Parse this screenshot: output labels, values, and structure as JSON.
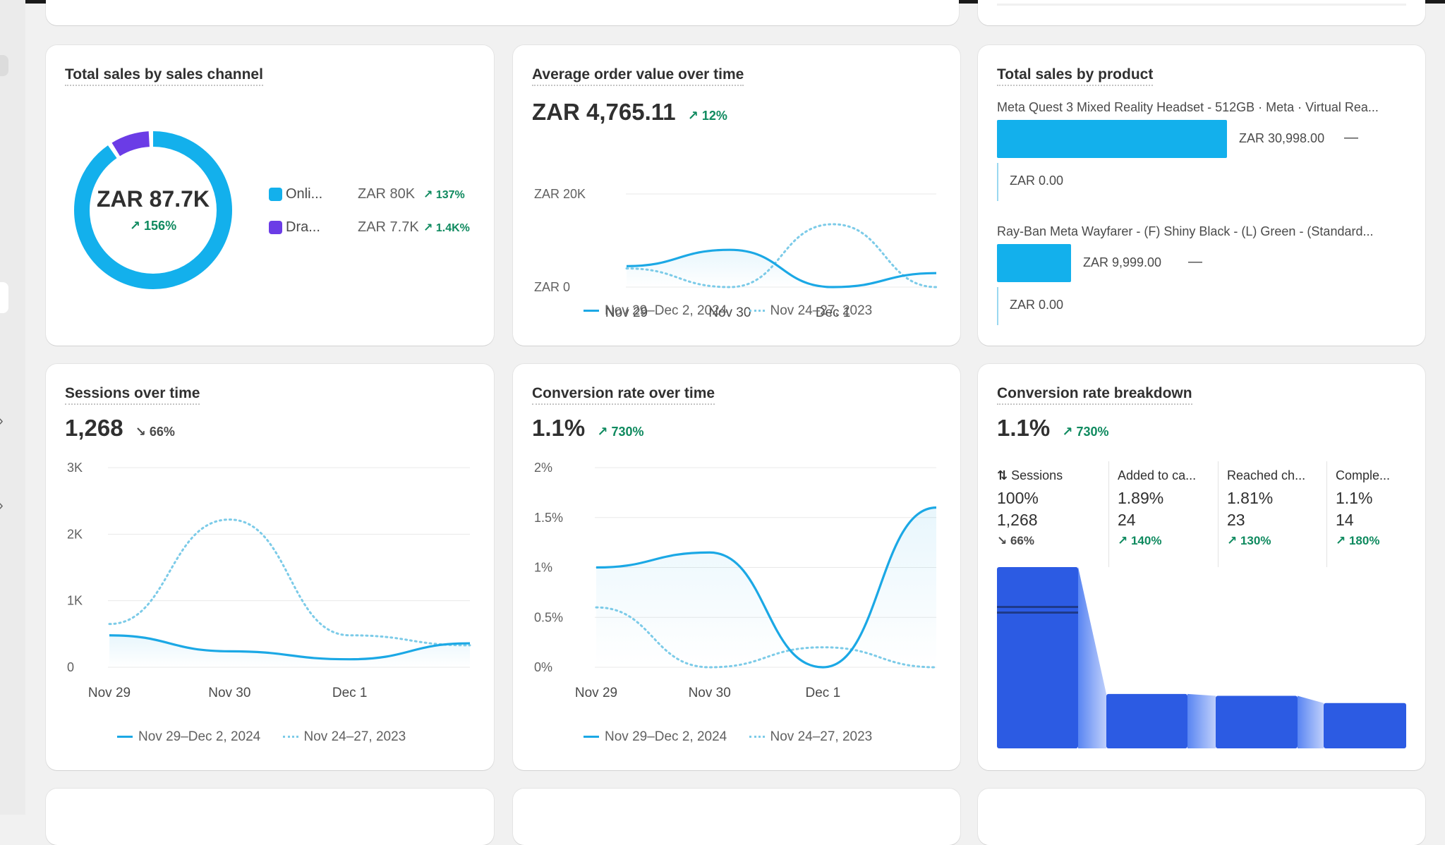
{
  "colors": {
    "primary_line": "#1ba8e5",
    "comparison_line": "#7ccbe8",
    "online_store": "#13b0ec",
    "draft_orders": "#6b3ce6",
    "positive": "#0f8a5f",
    "funnel_bar": "#2c5be3"
  },
  "sales_by_channel": {
    "title": "Total sales by sales channel",
    "center_value": "ZAR 87.7K",
    "center_delta": "156%",
    "legend": [
      {
        "label": "Onli...",
        "value": "ZAR 80K",
        "delta": "137%",
        "color": "#13b0ec"
      },
      {
        "label": "Dra...",
        "value": "ZAR 7.7K",
        "delta": "1.4K%",
        "color": "#6b3ce6"
      }
    ]
  },
  "aov": {
    "title": "Average order value over time",
    "value": "ZAR 4,765.11",
    "delta": "12%",
    "legend_current": "Nov 29–Dec 2, 2024",
    "legend_previous": "Nov 24–27, 2023"
  },
  "sales_by_product": {
    "title": "Total sales by product",
    "products": [
      {
        "name": "Meta Quest 3 Mixed Reality Headset - 512GB · Meta · Virtual Rea...",
        "value": "ZAR 30,998.00",
        "previous": "ZAR 0.00",
        "delta": "—",
        "amount": 30998
      },
      {
        "name": "Ray-Ban Meta Wayfarer - (F) Shiny Black - (L) Green - (Standard...",
        "value": "ZAR 9,999.00",
        "previous": "ZAR 0.00",
        "delta": "—",
        "amount": 9999
      }
    ]
  },
  "sessions": {
    "title": "Sessions over time",
    "value": "1,268",
    "delta": "66%",
    "legend_current": "Nov 29–Dec 2, 2024",
    "legend_previous": "Nov 24–27, 2023"
  },
  "conversion": {
    "title": "Conversion rate over time",
    "value": "1.1%",
    "delta": "730%",
    "legend_current": "Nov 29–Dec 2, 2024",
    "legend_previous": "Nov 24–27, 2023"
  },
  "breakdown": {
    "title": "Conversion rate breakdown",
    "value": "1.1%",
    "delta": "730%",
    "steps": [
      {
        "label": "Sessions",
        "pct": "100%",
        "count": "1,268",
        "delta": "66%",
        "direction": "down",
        "share": 1.0
      },
      {
        "label": "Added to ca...",
        "pct": "1.89%",
        "count": "24",
        "delta": "140%",
        "direction": "up",
        "share": 0.3
      },
      {
        "label": "Reached ch...",
        "pct": "1.81%",
        "count": "23",
        "delta": "130%",
        "direction": "up",
        "share": 0.29
      },
      {
        "label": "Comple...",
        "pct": "1.1%",
        "count": "14",
        "delta": "180%",
        "direction": "up",
        "share": 0.25
      }
    ]
  },
  "chart_data": [
    {
      "type": "pie",
      "title": "Total sales by sales channel",
      "labels": [
        "Onli...",
        "Dra..."
      ],
      "values": [
        80,
        7.7
      ],
      "units": "ZAR K"
    },
    {
      "type": "line",
      "title": "Average order value over time",
      "x": [
        "Nov 29",
        "Nov 30",
        "Dec 1",
        "Dec 2"
      ],
      "x_ticks": [
        "Nov 29",
        "Nov 30",
        "Dec 1"
      ],
      "y_ticks": [
        "ZAR 0",
        "ZAR 20K"
      ],
      "ylim": [
        0,
        20000
      ],
      "series": [
        {
          "name": "Nov 29–Dec 2, 2024",
          "values": [
            4500,
            8000,
            0,
            3000
          ]
        },
        {
          "name": "Nov 24–27, 2023",
          "values": [
            4000,
            0,
            13500,
            0
          ]
        }
      ]
    },
    {
      "type": "bar",
      "title": "Total sales by product",
      "categories": [
        "Meta Quest 3 Mixed Reality Headset - 512GB · Meta · Virtual Rea...",
        "Ray-Ban Meta Wayfarer - (F) Shiny Black - (L) Green - (Standard..."
      ],
      "series": [
        {
          "name": "Nov 29–Dec 2, 2024",
          "values": [
            30998,
            9999
          ]
        },
        {
          "name": "Nov 24–27, 2023",
          "values": [
            0,
            0
          ]
        }
      ]
    },
    {
      "type": "line",
      "title": "Sessions over time",
      "x": [
        "Nov 29",
        "Nov 30",
        "Dec 1",
        "Dec 2"
      ],
      "x_ticks": [
        "Nov 29",
        "Nov 30",
        "Dec 1"
      ],
      "y_ticks": [
        "0",
        "1K",
        "2K",
        "3K"
      ],
      "ylim": [
        0,
        3000
      ],
      "series": [
        {
          "name": "Nov 29–Dec 2, 2024",
          "values": [
            480,
            240,
            120,
            360
          ]
        },
        {
          "name": "Nov 24–27, 2023",
          "values": [
            650,
            2220,
            480,
            330
          ]
        }
      ]
    },
    {
      "type": "line",
      "title": "Conversion rate over time",
      "x": [
        "Nov 29",
        "Nov 30",
        "Dec 1",
        "Dec 2"
      ],
      "x_ticks": [
        "Nov 29",
        "Nov 30",
        "Dec 1"
      ],
      "y_ticks": [
        "0%",
        "0.5%",
        "1%",
        "1.5%",
        "2%"
      ],
      "ylim": [
        0,
        2
      ],
      "series": [
        {
          "name": "Nov 29–Dec 2, 2024",
          "values": [
            1.0,
            1.15,
            0,
            1.6
          ]
        },
        {
          "name": "Nov 24–27, 2023",
          "values": [
            0.6,
            0,
            0.2,
            0
          ]
        }
      ]
    },
    {
      "type": "bar",
      "title": "Conversion rate breakdown",
      "categories": [
        "Sessions",
        "Added to ca...",
        "Reached ch...",
        "Comple..."
      ],
      "values": [
        100,
        1.89,
        1.81,
        1.1
      ],
      "units": "%"
    }
  ]
}
